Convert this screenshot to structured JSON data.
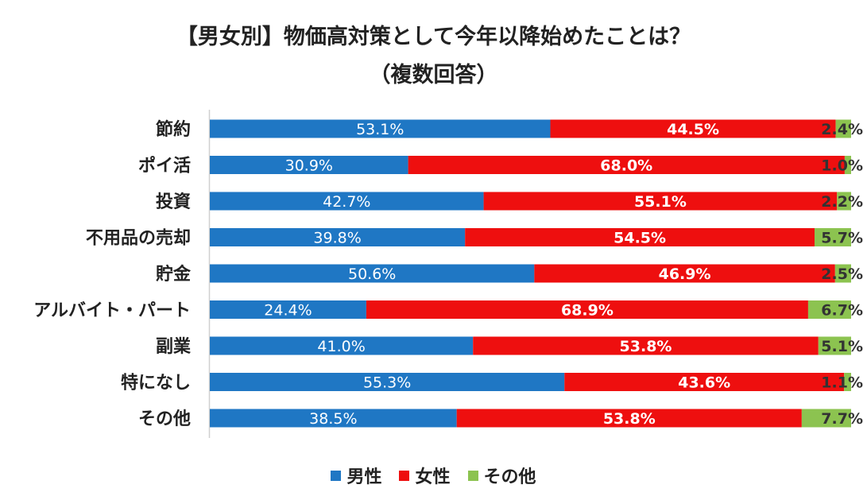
{
  "chart_data": {
    "type": "bar",
    "orientation": "horizontal",
    "stacked": true,
    "normalized": true,
    "title": "【男女別】物価高対策として今年以降始めたことは？",
    "subtitle": "（複数回答）",
    "categories": [
      "節約",
      "ポイ活",
      "投資",
      "不用品の売却",
      "貯金",
      "アルバイト・パート",
      "副業",
      "特になし",
      "その他"
    ],
    "series": [
      {
        "name": "男性",
        "color": "#1f77c4",
        "values": [
          53.1,
          30.9,
          42.7,
          39.8,
          50.6,
          24.4,
          41.0,
          55.3,
          38.5
        ]
      },
      {
        "name": "女性",
        "color": "#ee0f0f",
        "values": [
          44.5,
          68.0,
          55.1,
          54.5,
          46.9,
          68.9,
          53.8,
          43.6,
          53.8
        ]
      },
      {
        "name": "その他",
        "color": "#8cc350",
        "values": [
          2.4,
          1.0,
          2.2,
          5.7,
          2.5,
          6.7,
          5.1,
          1.1,
          7.7
        ]
      }
    ],
    "labels": [
      [
        "53.1%",
        "30.9%",
        "42.7%",
        "39.8%",
        "50.6%",
        "24.4%",
        "41.0%",
        "55.3%",
        "38.5%"
      ],
      [
        "44.5%",
        "68.0%",
        "55.1%",
        "54.5%",
        "46.9%",
        "68.9%",
        "53.8%",
        "43.6%",
        "53.8%"
      ],
      [
        "2.4%",
        "1.0%",
        "2.2%",
        "5.7%",
        "2.5%",
        "6.7%",
        "5.1%",
        "1.1%",
        "7.7%"
      ]
    ],
    "xlim": [
      0,
      100
    ],
    "legend_position": "bottom",
    "grid": false
  }
}
